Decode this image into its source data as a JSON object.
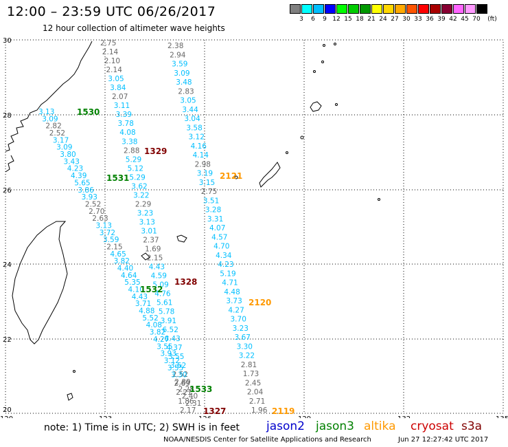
{
  "header": {
    "title": "12:00 – 23:59 UTC 06/26/2017",
    "subtitle": "12 hour collection of altimeter wave heights"
  },
  "colorbar": {
    "labels": [
      "3",
      "6",
      "9",
      "12",
      "15",
      "18",
      "21",
      "24",
      "27",
      "30",
      "33",
      "36",
      "39",
      "42",
      "45",
      "70"
    ],
    "colors": [
      "#808080",
      "#00ffff",
      "#00bfff",
      "#0000ff",
      "#00ff00",
      "#00cc00",
      "#009900",
      "#ffff00",
      "#ffd700",
      "#ffaa00",
      "#ff5500",
      "#ff0000",
      "#aa0000",
      "#880033",
      "#ff66ff",
      "#ff99ff",
      "#000000"
    ],
    "unit": "(ft)"
  },
  "axes": {
    "lon_ticks": [
      "120",
      "123",
      "126",
      "129",
      "132",
      "135"
    ],
    "lat_ticks": [
      "30",
      "28",
      "26",
      "24",
      "22",
      "20"
    ]
  },
  "tracks": {
    "t1": [
      "2.75",
      "2.14",
      "2.10",
      "2.14",
      "3.05",
      "3.84",
      "2.07",
      "3.11",
      "3.39",
      "3.78",
      "4.08",
      "3.38",
      "2.88",
      "5.29",
      "5.12",
      "5.29",
      "3.62",
      "3.22",
      "2.29",
      "3.23",
      "3.13",
      "3.01",
      "2.37",
      "1.69",
      "2.15",
      "4.43",
      "4.59",
      "5.09",
      "4.76",
      "5.61",
      "5.78",
      "3.91",
      "6.52",
      "6.43",
      "4.37",
      "3.55",
      "3.62",
      "2.52",
      "2.69",
      "2.21",
      "1.86",
      "2.17"
    ],
    "t2": [
      "3.13",
      "3.09",
      "2.82",
      "2.52",
      "3.17",
      "3.09",
      "3.80",
      "3.43",
      "4.23",
      "4.39",
      "5.65",
      "3.86",
      "3.93",
      "2.52",
      "2.70",
      "2.63",
      "3.13",
      "3.72",
      "3.59",
      "2.15",
      "4.65",
      "3.82",
      "4.40",
      "4.64",
      "5.35",
      "4.10",
      "4.43",
      "3.71",
      "4.88",
      "5.52",
      "4.08",
      "3.82",
      "4.27",
      "3.55",
      "3.93",
      "3.12",
      "3.55",
      "3.30",
      "2.89",
      "2.28",
      "2.40",
      "2.31"
    ],
    "t3": [
      "2.38",
      "2.94",
      "3.59",
      "3.09",
      "3.48",
      "2.83",
      "3.05",
      "3.44",
      "3.04",
      "3.58",
      "3.12",
      "4.16",
      "4.14",
      "2.98",
      "3.19",
      "3.15",
      "2.75",
      "3.51",
      "3.28",
      "3.31",
      "4.07",
      "4.57",
      "4.70",
      "4.34",
      "4.23",
      "5.19",
      "4.71",
      "4.48",
      "3.73",
      "4.27",
      "3.70",
      "3.23",
      "3.67",
      "3.30",
      "3.22",
      "2.81",
      "1.73",
      "2.45",
      "2.04",
      "2.71",
      "1.96"
    ]
  },
  "pass_labels": [
    {
      "text": "1530",
      "color": "#008000"
    },
    {
      "text": "1329",
      "color": "#800000"
    },
    {
      "text": "2121",
      "color": "#ff9900"
    },
    {
      "text": "1531",
      "color": "#008000"
    },
    {
      "text": "1328",
      "color": "#800000"
    },
    {
      "text": "1532",
      "color": "#008000"
    },
    {
      "text": "2120",
      "color": "#ff9900"
    },
    {
      "text": "1533",
      "color": "#008000"
    },
    {
      "text": "1327",
      "color": "#800000"
    },
    {
      "text": "2119",
      "color": "#ff9900"
    }
  ],
  "colors": {
    "track_cyan": "#00bfff",
    "track_gray": "#666666"
  },
  "legend": {
    "note": "note: 1) Time is in UTC; 2) SWH is in feet",
    "satellites": [
      {
        "name": "jason2",
        "color": "#0000cc"
      },
      {
        "name": "jason3",
        "color": "#008000"
      },
      {
        "name": "altika",
        "color": "#ff9900"
      },
      {
        "name": "cryosat",
        "color": "#cc0000"
      },
      {
        "name": "s3a",
        "color": "#800000"
      }
    ]
  },
  "footer": {
    "credit": "NOAA/NESDIS Center for Satellite Applications and Research",
    "generated": "Jun 27 12:27:42 UTC 2017"
  }
}
